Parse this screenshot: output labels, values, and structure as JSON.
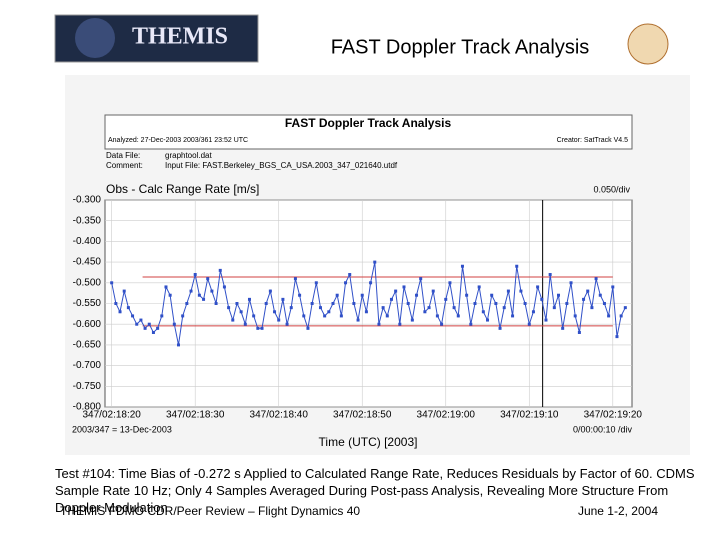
{
  "slide": {
    "logo": "THEMIS",
    "title": "FAST Doppler Track Analysis",
    "caption": "Test #104: Time Bias of -0.272 s Applied to Calculated Range Rate, Reduces Residuals by Factor of 60. CDMS Sample Rate 10 Hz; Only 4 Samples Averaged During Post-pass Analysis, Revealing More Structure From Doppler Modulation",
    "footer_left": "THEMIS FDMO CDR/Peer Review – Flight Dynamics 40",
    "footer_right": "June 1-2, 2004"
  },
  "chart_data": {
    "type": "line",
    "title": "FAST Doppler Track Analysis",
    "analyzed": "Analyzed: 27-Dec-2003 2003/361 23:52 UTC",
    "creator": "Creator: SatTrack V4.5",
    "data_file_label": "Data File:",
    "data_file": "graphtool.dat",
    "comment_label": "Comment:",
    "comment": "Input File: FAST.Berkeley_BGS_CA_USA.2003_347_021640.utdf",
    "ylabel": "Obs - Calc Range Rate [m/s]",
    "ydiv": "0.050/div",
    "xnote": "2003/347 = 13-Dec-2003",
    "xdiv": "0/00:00:10 /div",
    "xlabel": "Time (UTC) [2003]",
    "xlim": [
      8299.2,
      8362.3
    ],
    "ylim": [
      -0.8,
      -0.3
    ],
    "xticks": [
      {
        "value": 8300,
        "label": "347/02:18:20"
      },
      {
        "value": 8310,
        "label": "347/02:18:30"
      },
      {
        "value": 8320,
        "label": "347/02:18:40"
      },
      {
        "value": 8330,
        "label": "347/02:18:50"
      },
      {
        "value": 8340,
        "label": "347/02:19:00"
      },
      {
        "value": 8350,
        "label": "347/02:19:10"
      },
      {
        "value": 8360,
        "label": "347/02:19:20"
      }
    ],
    "yticks": [
      {
        "value": -0.3,
        "label": "-0.300"
      },
      {
        "value": -0.35,
        "label": "-0.350"
      },
      {
        "value": -0.4,
        "label": "-0.400"
      },
      {
        "value": -0.45,
        "label": "-0.450"
      },
      {
        "value": -0.5,
        "label": "-0.500"
      },
      {
        "value": -0.55,
        "label": "-0.550"
      },
      {
        "value": -0.6,
        "label": "-0.600"
      },
      {
        "value": -0.65,
        "label": "-0.650"
      },
      {
        "value": -0.7,
        "label": "-0.700"
      },
      {
        "value": -0.75,
        "label": "-0.750"
      },
      {
        "value": -0.8,
        "label": "-0.800"
      }
    ],
    "grid": true,
    "ref_lines": [
      {
        "x": [
          8303.7,
          8360
        ],
        "values": [
          -0.486,
          -0.486
        ],
        "color": "#d04040"
      },
      {
        "x": [
          8303.7,
          8360
        ],
        "values": [
          -0.604,
          -0.604
        ],
        "color": "#d04040"
      }
    ],
    "vline": 8351.6,
    "series": [
      {
        "color": "#3050c8",
        "x": [
          8300,
          8300.5,
          8301,
          8301.5,
          8302,
          8302.5,
          8303,
          8303.5,
          8304,
          8304.5,
          8305,
          8305.5,
          8306,
          8306.5,
          8307,
          8307.5,
          8308,
          8308.5,
          8309,
          8309.5,
          8310,
          8310.5,
          8311,
          8311.5,
          8312,
          8312.5,
          8313,
          8313.5,
          8314,
          8314.5,
          8315,
          8315.5,
          8316,
          8316.5,
          8317,
          8317.5,
          8318,
          8318.5,
          8319,
          8319.5,
          8320,
          8320.5,
          8321,
          8321.5,
          8322,
          8322.5,
          8323,
          8323.5,
          8324,
          8324.5,
          8325,
          8325.5,
          8326,
          8326.5,
          8327,
          8327.5,
          8328,
          8328.5,
          8329,
          8329.5,
          8330,
          8330.5,
          8331,
          8331.5,
          8332,
          8332.5,
          8333,
          8333.5,
          8334,
          8334.5,
          8335,
          8335.5,
          8336,
          8336.5,
          8337,
          8337.5,
          8338,
          8338.5,
          8339,
          8339.5,
          8340,
          8340.5,
          8341,
          8341.5,
          8342,
          8342.5,
          8343,
          8343.5,
          8344,
          8344.5,
          8345,
          8345.5,
          8346,
          8346.5,
          8347,
          8347.5,
          8348,
          8348.5,
          8349,
          8349.5,
          8350,
          8350.5,
          8351,
          8351.5,
          8352,
          8352.5,
          8353,
          8353.5,
          8354,
          8354.5,
          8355,
          8355.5,
          8356,
          8356.5,
          8357,
          8357.5,
          8358,
          8358.5,
          8359,
          8359.5,
          8360,
          8360.5,
          8361,
          8361.5
        ],
        "values": [
          -0.5,
          -0.55,
          -0.57,
          -0.52,
          -0.56,
          -0.58,
          -0.6,
          -0.59,
          -0.61,
          -0.6,
          -0.62,
          -0.61,
          -0.58,
          -0.51,
          -0.53,
          -0.6,
          -0.65,
          -0.58,
          -0.55,
          -0.52,
          -0.48,
          -0.53,
          -0.54,
          -0.49,
          -0.52,
          -0.55,
          -0.47,
          -0.51,
          -0.56,
          -0.59,
          -0.55,
          -0.57,
          -0.6,
          -0.54,
          -0.58,
          -0.61,
          -0.61,
          -0.55,
          -0.52,
          -0.57,
          -0.59,
          -0.54,
          -0.6,
          -0.56,
          -0.49,
          -0.53,
          -0.58,
          -0.61,
          -0.55,
          -0.5,
          -0.56,
          -0.58,
          -0.57,
          -0.55,
          -0.53,
          -0.58,
          -0.5,
          -0.48,
          -0.55,
          -0.59,
          -0.53,
          -0.57,
          -0.5,
          -0.45,
          -0.6,
          -0.56,
          -0.58,
          -0.54,
          -0.52,
          -0.6,
          -0.51,
          -0.55,
          -0.59,
          -0.53,
          -0.49,
          -0.57,
          -0.56,
          -0.52,
          -0.58,
          -0.6,
          -0.54,
          -0.5,
          -0.56,
          -0.58,
          -0.46,
          -0.53,
          -0.6,
          -0.55,
          -0.51,
          -0.57,
          -0.59,
          -0.53,
          -0.55,
          -0.61,
          -0.56,
          -0.52,
          -0.58,
          -0.46,
          -0.52,
          -0.55,
          -0.6,
          -0.57,
          -0.51,
          -0.54,
          -0.59,
          -0.48,
          -0.56,
          -0.53,
          -0.61,
          -0.55,
          -0.5,
          -0.58,
          -0.62,
          -0.54,
          -0.52,
          -0.56,
          -0.49,
          -0.53,
          -0.55,
          -0.58,
          -0.51,
          -0.63,
          -0.58,
          -0.56
        ]
      }
    ]
  }
}
